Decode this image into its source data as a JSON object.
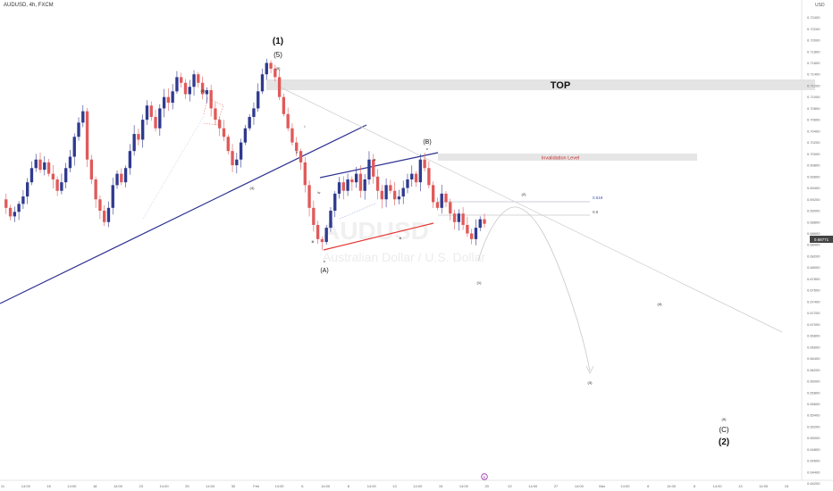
{
  "header": {
    "symbol": "AUDUSD, 4h, FXCM",
    "currency": "USD"
  },
  "price_axis": {
    "ticks": [
      "0.72400",
      "0.72200",
      "0.72000",
      "0.71800",
      "0.71600",
      "0.71400",
      "0.71200",
      "0.71000",
      "0.70800",
      "0.70600",
      "0.70400",
      "0.70200",
      "0.70000",
      "0.69800",
      "0.69600",
      "0.69400",
      "0.69200",
      "0.69000",
      "0.68800",
      "0.68600",
      "0.68400",
      "0.68200",
      "0.68000",
      "0.67800",
      "0.67600",
      "0.67400",
      "0.67200",
      "0.67000",
      "0.66800",
      "0.66600",
      "0.66400",
      "0.66200",
      "0.66000",
      "0.65800",
      "0.65600",
      "0.65400",
      "0.65200",
      "0.65000",
      "0.64800",
      "0.64600",
      "0.64400",
      "0.64200"
    ],
    "current_price": "0.68771",
    "colors": {
      "current": "#444444"
    }
  },
  "time_axis": {
    "labels": [
      "11",
      "14:00",
      "16",
      "14:00",
      "18",
      "14:00",
      "23",
      "14:00",
      "25",
      "14:00",
      "30",
      "Feb",
      "14:00",
      "6",
      "14:00",
      "8",
      "14:00",
      "13",
      "14:00",
      "15",
      "14:00",
      "20",
      "22",
      "14:00",
      "27",
      "14:00",
      "Mar",
      "14:00",
      "6",
      "14:00",
      "8",
      "14:00",
      "13",
      "14:00",
      "15"
    ]
  },
  "watermark": {
    "symbol": "AUDUSD",
    "name": "Australian Dollar / U.S. Dollar"
  },
  "annotations": {
    "top_label": "TOP",
    "invalidation_label": "Invalidation Level",
    "fib_618": "0.618",
    "fib_5": "0.5",
    "wave_1_big": "(1)",
    "wave_5_paren": "(5)",
    "wave_5_small": "(5)",
    "wave_3_small": "(3)",
    "wave_4_small": "(4)",
    "wave_i": "i",
    "wave_ii": "ii",
    "wave_iii": "iii",
    "wave_iv": "iv",
    "wave_v": "v",
    "wave_A": "(A)",
    "wave_a": "a",
    "wave_b": "b",
    "wave_c": "c",
    "wave_B": "(B)",
    "wave_sub1": "(1)",
    "wave_sub2": "(2)",
    "wave_sub3": "(3)",
    "wave_sub4": "(4)",
    "wave_sub5": "(5)",
    "wave_C": "(C)",
    "wave_2_big": "(2)",
    "event_marker": "E"
  },
  "chart_data": {
    "type": "candlestick",
    "title": "",
    "xlabel": "",
    "ylabel": "",
    "ylim": [
      0.641,
      0.7255
    ],
    "colors": {
      "up": "#2f3a8f",
      "down": "#e05a5a"
    },
    "close_path": [
      0.692,
      0.6905,
      0.689,
      0.6898,
      0.6912,
      0.6925,
      0.695,
      0.6975,
      0.699,
      0.6972,
      0.6985,
      0.6965,
      0.6955,
      0.6935,
      0.695,
      0.6975,
      0.6995,
      0.703,
      0.7055,
      0.7075,
      0.699,
      0.6955,
      0.692,
      0.69,
      0.688,
      0.6905,
      0.6945,
      0.6965,
      0.695,
      0.6975,
      0.7005,
      0.7035,
      0.7025,
      0.706,
      0.7085,
      0.7065,
      0.7045,
      0.708,
      0.71,
      0.709,
      0.711,
      0.7135,
      0.7125,
      0.7105,
      0.7118,
      0.714,
      0.7125,
      0.7105,
      0.7112,
      0.708,
      0.706,
      0.7045,
      0.703,
      0.7005,
      0.698,
      0.699,
      0.702,
      0.7045,
      0.7065,
      0.708,
      0.711,
      0.714,
      0.716,
      0.715,
      0.7135,
      0.71,
      0.707,
      0.7045,
      0.702,
      0.7005,
      0.6985,
      0.6945,
      0.6905,
      0.6875,
      0.685,
      0.6845,
      0.687,
      0.69,
      0.693,
      0.695,
      0.6935,
      0.6955,
      0.695,
      0.6965,
      0.6935,
      0.6955,
      0.699,
      0.696,
      0.6935,
      0.692,
      0.6945,
      0.6935,
      0.692,
      0.6925,
      0.694,
      0.6955,
      0.6965,
      0.695,
      0.699,
      0.6975,
      0.6945,
      0.6915,
      0.6905,
      0.693,
      0.6915,
      0.6895,
      0.688,
      0.6895,
      0.6875,
      0.686,
      0.685,
      0.687,
      0.6885,
      0.6877
    ],
    "projection": [
      {
        "x": "(1)",
        "y": 0.685
      },
      {
        "x": "(2)",
        "y": 0.694
      },
      {
        "x": "(3)",
        "y": 0.662
      },
      {
        "x": "(4)",
        "y": 0.676
      },
      {
        "x": "(5)",
        "y": 0.6545
      }
    ],
    "levels": {
      "top": 0.716,
      "invalidation": 0.7025,
      "fib_618": 0.695,
      "fib_5": 0.6925
    }
  }
}
